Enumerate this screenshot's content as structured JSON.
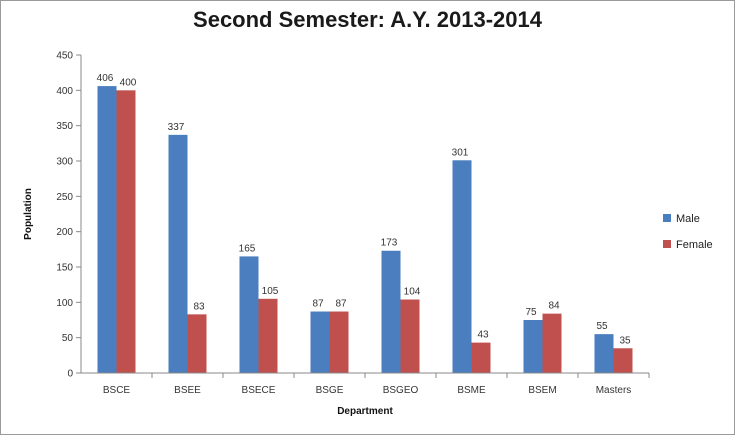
{
  "chart_data": {
    "type": "bar",
    "title": "Second Semester: A.Y. 2013-2014",
    "xlabel": "Department",
    "ylabel": "Population",
    "ylim": [
      0,
      450
    ],
    "yticks": [
      0,
      50,
      100,
      150,
      200,
      250,
      300,
      350,
      400,
      450
    ],
    "categories": [
      "BSCE",
      "BSEE",
      "BSECE",
      "BSGE",
      "BSGEO",
      "BSME",
      "BSEM",
      "Masters"
    ],
    "series": [
      {
        "name": "Male",
        "color": "#4a7ebf",
        "values": [
          406,
          337,
          165,
          87,
          173,
          301,
          75,
          55
        ]
      },
      {
        "name": "Female",
        "color": "#c0504d",
        "values": [
          400,
          83,
          105,
          87,
          104,
          43,
          84,
          35
        ]
      }
    ],
    "grid": false,
    "legend": "right"
  }
}
